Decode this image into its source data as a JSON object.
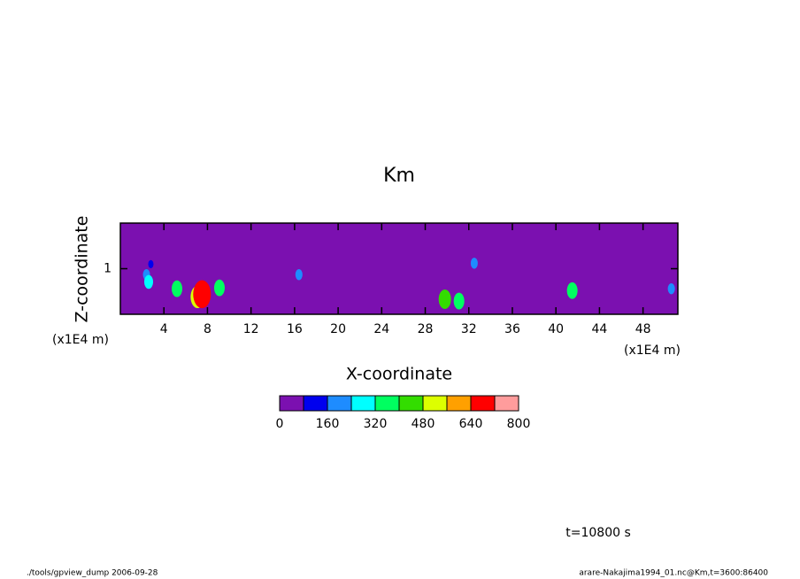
{
  "chart_data": {
    "type": "contour",
    "title": "Km",
    "x_label": "X-coordinate",
    "y_label": "Z-coordinate",
    "x_unit": "(x1E4 m)",
    "y_unit": "(x1E4 m)",
    "xlim": [
      0,
      51.2
    ],
    "ylim": [
      0,
      2
    ],
    "xticks": [
      4,
      8,
      12,
      16,
      20,
      24,
      28,
      32,
      36,
      40,
      44,
      48
    ],
    "yticks": [
      1
    ],
    "levels": [
      0,
      80,
      160,
      240,
      320,
      400,
      480,
      560,
      640,
      720,
      800
    ],
    "colors": [
      "#7b10b0",
      "#0000ee",
      "#1e8cff",
      "#00ffff",
      "#00ff60",
      "#33dd00",
      "#ddff00",
      "#ffa000",
      "#ff0000",
      "#ff9c9c"
    ],
    "colorbar_ticks": [
      0,
      160,
      320,
      480,
      640,
      800
    ],
    "cells": {
      "x": [
        2.8,
        2.4,
        2.6,
        5.2,
        7.1,
        7.5,
        9.1,
        16.4,
        29.8,
        31.1,
        32.5,
        41.5,
        50.6
      ],
      "y": [
        1.1,
        0.87,
        0.71,
        0.56,
        0.38,
        0.44,
        0.58,
        0.87,
        0.33,
        0.29,
        1.12,
        0.52,
        0.56
      ],
      "values": [
        80,
        160,
        240,
        320,
        480,
        640,
        320,
        160,
        400,
        320,
        160,
        320,
        160
      ]
    },
    "time_label": "t=10800 s",
    "footer_left": "./tools/gpview_dump  2006-09-28",
    "footer_right": "arare-Nakajima1994_01.nc@Km,t=3600:86400"
  }
}
